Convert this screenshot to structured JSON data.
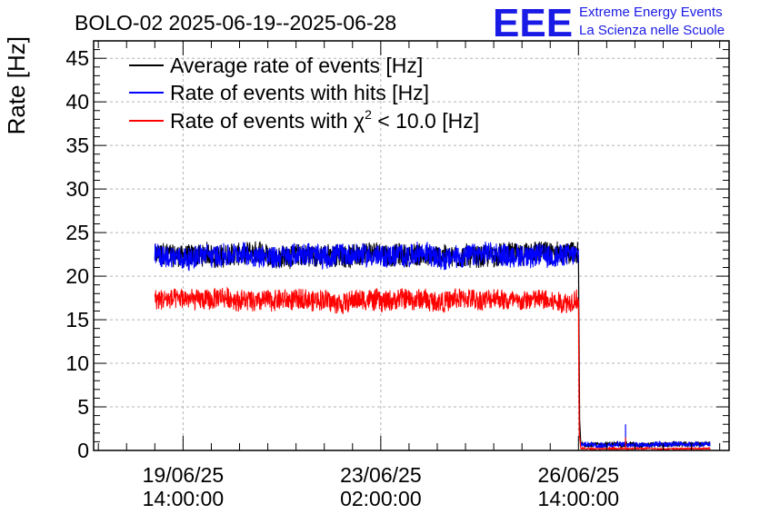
{
  "chart_data": {
    "type": "line",
    "title": "BOLO-02 2025-06-19--2025-06-28",
    "ylabel": "Rate [Hz]",
    "xlabel": "",
    "ylim": [
      0,
      47
    ],
    "yticks": [
      0,
      5,
      10,
      15,
      20,
      25,
      30,
      35,
      40,
      45
    ],
    "y_minor_step": 1,
    "grid": true,
    "legend_position": "top-left",
    "x_axis": {
      "type": "time",
      "range": [
        "2025-06-18 00:00",
        "2025-06-29 06:00"
      ],
      "ticks": [
        {
          "time": "2025-06-19 14:00",
          "line1": "19/06/25",
          "line2": "14:00:00"
        },
        {
          "time": "2025-06-23 02:00",
          "line1": "23/06/25",
          "line2": "02:00:00"
        },
        {
          "time": "2025-06-26 14:00",
          "line1": "26/06/25",
          "line2": "14:00:00"
        }
      ]
    },
    "series": [
      {
        "name": "Average rate of events [Hz]",
        "color": "#000000",
        "segments": [
          {
            "start": "2025-06-19 02:00",
            "end": "2025-06-26 14:00",
            "base": 22.4,
            "noise": 1.3
          },
          {
            "start": "2025-06-26 15:00",
            "end": "2025-06-28 22:00",
            "base": 0.7,
            "noise": 0.3
          }
        ],
        "transition": [
          {
            "x": "2025-06-26 14:00",
            "y": 22.4
          },
          {
            "x": "2025-06-26 14:15",
            "y": 13.0
          },
          {
            "x": "2025-06-26 14:30",
            "y": 3.5
          },
          {
            "x": "2025-06-26 15:00",
            "y": 0.7
          }
        ]
      },
      {
        "name": "Rate of events with hits [Hz]",
        "color": "#0000ff",
        "segments": [
          {
            "start": "2025-06-19 02:00",
            "end": "2025-06-26 14:00",
            "base": 22.4,
            "noise": 1.3
          },
          {
            "start": "2025-06-26 15:00",
            "end": "2025-06-28 22:00",
            "base": 0.7,
            "noise": 0.3
          }
        ],
        "spikes": [
          {
            "x": "2025-06-27 10:00",
            "y": 3.0
          }
        ]
      },
      {
        "name": "Rate of events with χ² < 10.0 [Hz]",
        "name_prefix": "Rate of events with ",
        "name_symbol": "χ",
        "name_sup": "2",
        "name_suffix": " < 10.0 [Hz]",
        "color": "#ff0000",
        "segments": [
          {
            "start": "2025-06-19 02:00",
            "end": "2025-06-26 14:00",
            "base": 17.3,
            "noise": 1.2
          },
          {
            "start": "2025-06-26 15:00",
            "end": "2025-06-28 22:00",
            "base": 0.2,
            "noise": 0.1
          }
        ],
        "transition": [
          {
            "x": "2025-06-26 14:00",
            "y": 17.3
          },
          {
            "x": "2025-06-26 14:10",
            "y": 9.0
          },
          {
            "x": "2025-06-26 14:20",
            "y": 2.0
          },
          {
            "x": "2025-06-26 15:00",
            "y": 0.2
          }
        ],
        "spikes": [
          {
            "x": "2025-06-27 10:00",
            "y": 1.5
          }
        ]
      }
    ]
  },
  "logo": {
    "mark": "EEE",
    "line1": "Extreme Energy Events",
    "line2": "La Scienza nelle Scuole",
    "color": "#1a1ae6"
  }
}
